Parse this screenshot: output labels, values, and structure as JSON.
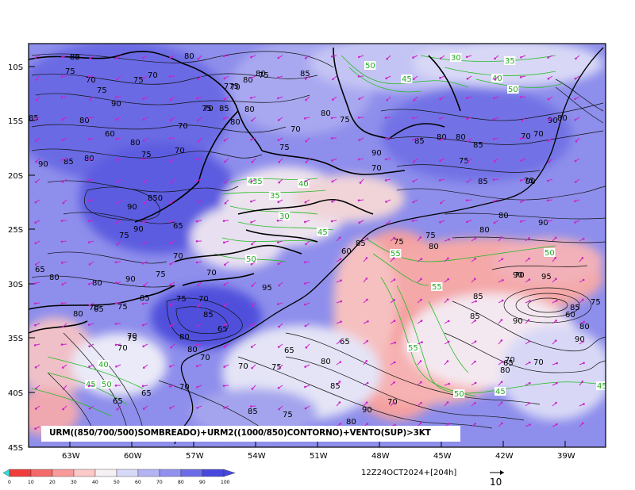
{
  "title": "URM((850/700/500)SOMBREADO)+URM2((1000/850)CONTORNO)+VENTO(SUP)>3KT",
  "valid_time": "12Z24OCT2024+[204h]",
  "vector_ref": "10",
  "lat_labels": [
    "10S",
    "15S",
    "20S",
    "25S",
    "30S",
    "35S",
    "40S",
    "45S"
  ],
  "lon_labels": [
    "63W",
    "60W",
    "57W",
    "54W",
    "51W",
    "48W",
    "45W",
    "42W",
    "39W"
  ],
  "colorbar": {
    "ticks": [
      "0",
      "10",
      "20",
      "30",
      "40",
      "50",
      "60",
      "70",
      "80",
      "90",
      "100"
    ],
    "colors": [
      "#2ee0e0",
      "#f03c3c",
      "#f46a6a",
      "#f89a9a",
      "#fcc8c8",
      "#f4f0f4",
      "#d8d8f8",
      "#b4b4f4",
      "#9090ee",
      "#6c6ce6",
      "#4848de"
    ]
  },
  "black_contour_labels": [
    "80",
    "75",
    "80",
    "70",
    "80",
    "75",
    "775",
    "85",
    "70",
    "75",
    "90",
    "70",
    "75",
    "80",
    "70",
    "85",
    "80",
    "85",
    "80",
    "75",
    "70",
    "80",
    "70",
    "75",
    "80",
    "80",
    "60",
    "75",
    "80",
    "85",
    "90",
    "85",
    "80",
    "75",
    "70",
    "90",
    "75",
    "70",
    "90",
    "85",
    "80",
    "85",
    "65",
    "850",
    "90",
    "75",
    "70",
    "70",
    "90",
    "95",
    "65",
    "80",
    "90",
    "85",
    "80",
    "75",
    "80",
    "70",
    "65",
    "75",
    "70",
    "65",
    "75",
    "85",
    "70",
    "80",
    "80",
    "70",
    "75",
    "70",
    "70",
    "65",
    "70",
    "65",
    "85",
    "75",
    "65",
    "80",
    "90",
    "70",
    "75",
    "75",
    "80",
    "80",
    "90",
    "70",
    "95",
    "85",
    "85",
    "90",
    "65",
    "75",
    "90",
    "60",
    "85",
    "80",
    "90",
    "70",
    "80",
    "70",
    "80",
    "85",
    "90",
    "80",
    "70",
    "70",
    "60",
    "85",
    "75",
    "65",
    "75",
    "80",
    "85"
  ],
  "green_contour_labels": [
    "50",
    "30",
    "35",
    "45",
    "40",
    "50",
    "45",
    "40",
    "35",
    "30",
    "45",
    "50",
    "55",
    "50",
    "55",
    "55",
    "50",
    "45",
    "45",
    "40",
    "45",
    "50",
    "35"
  ]
}
